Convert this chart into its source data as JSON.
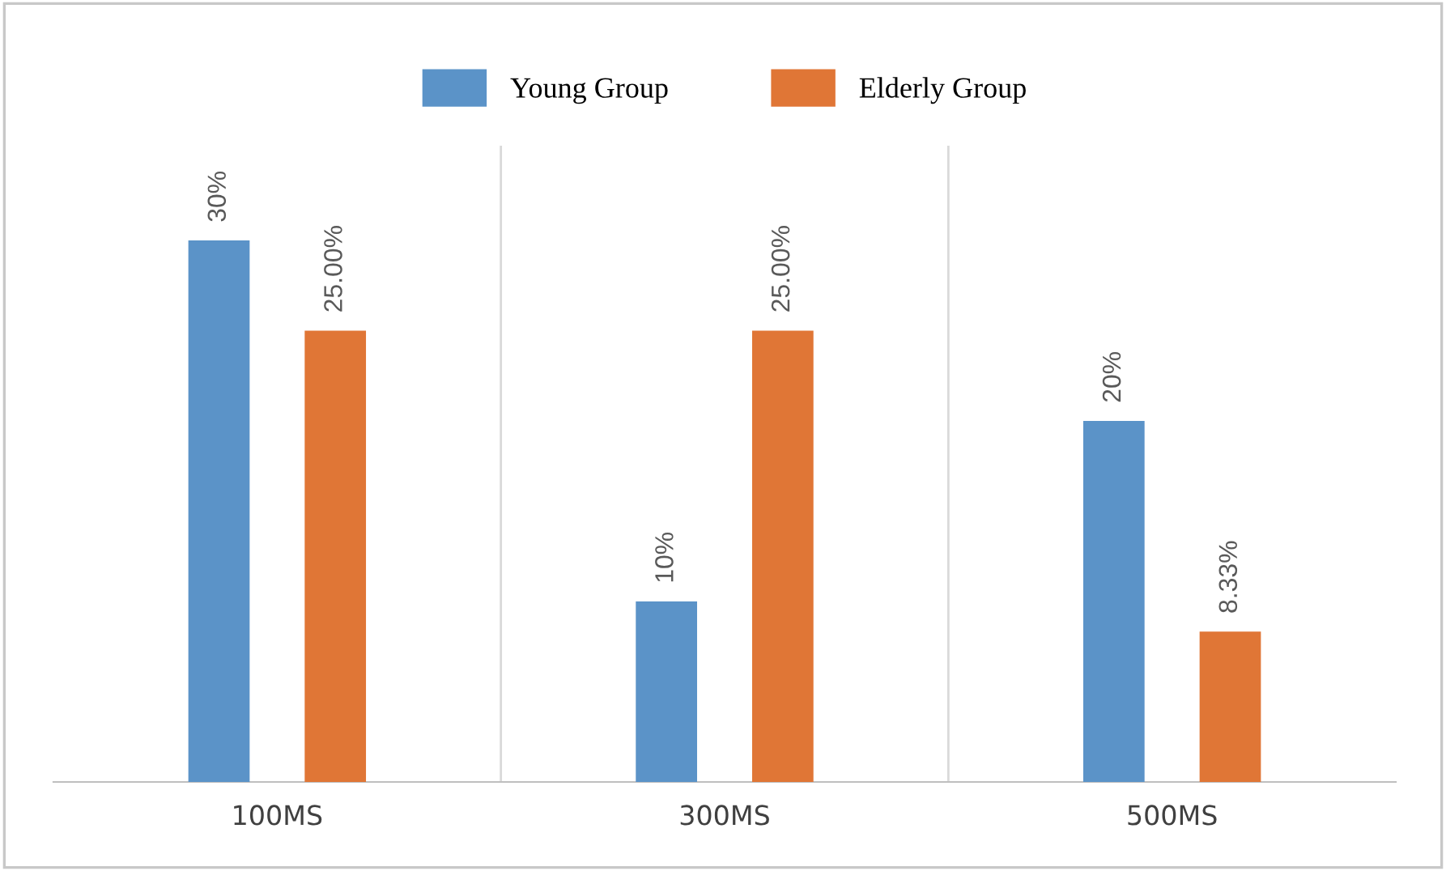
{
  "chart_data": {
    "type": "bar",
    "categories": [
      "100MS",
      "300MS",
      "500MS"
    ],
    "series": [
      {
        "name": "Young Group",
        "color": "#5b93c8",
        "values": [
          30,
          10,
          20
        ],
        "value_labels": [
          "30%",
          "10%",
          "20%"
        ]
      },
      {
        "name": "Elderly Group",
        "color": "#e07636",
        "values": [
          25,
          25,
          8.33
        ],
        "value_labels": [
          "25.00%",
          "25.00%",
          "8.33%"
        ]
      }
    ],
    "grid": "x",
    "legend": "top",
    "tick_labels": "x"
  }
}
